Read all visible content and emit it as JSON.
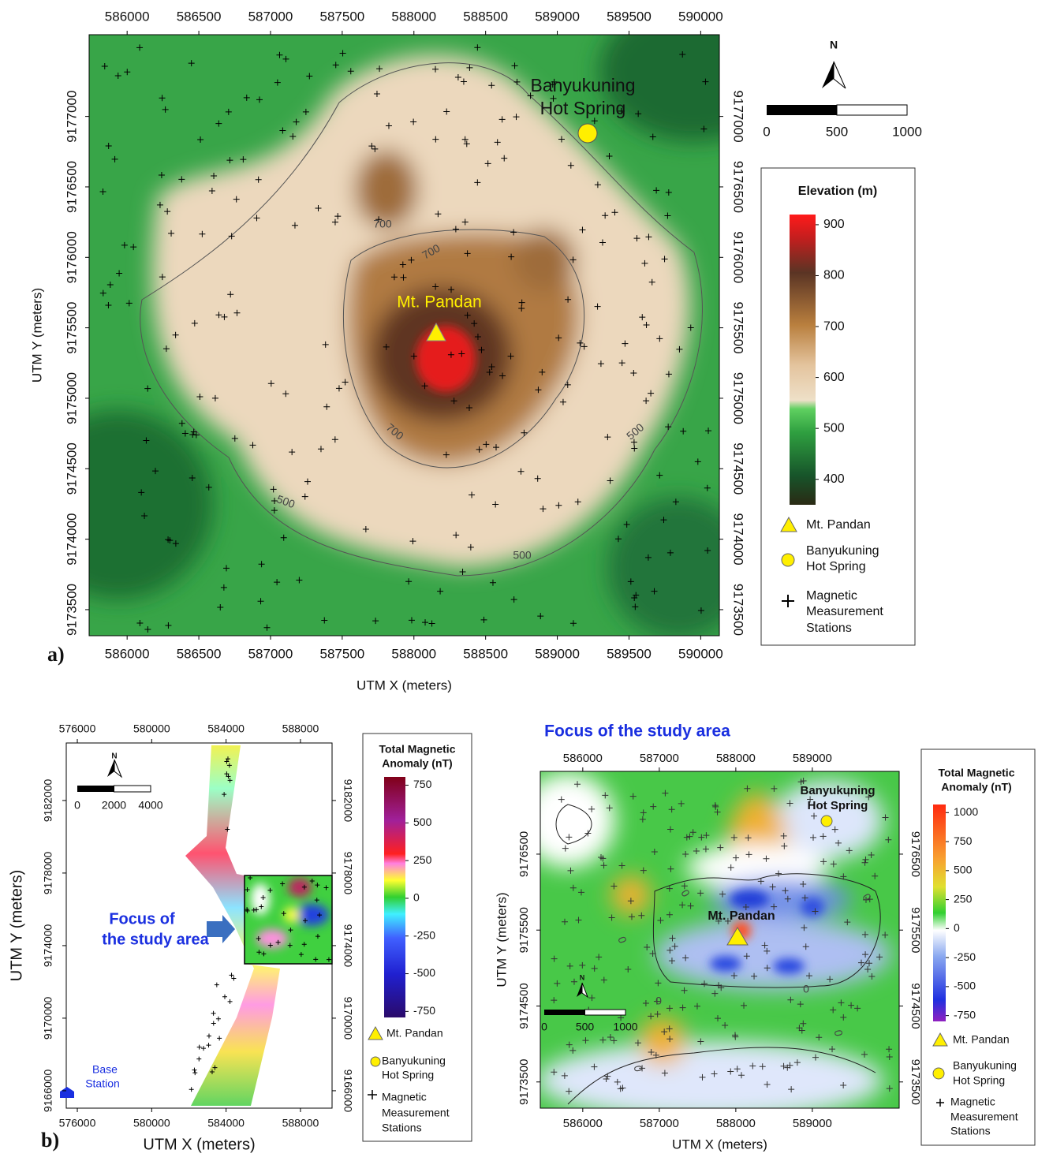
{
  "panel_a": {
    "label": "a)",
    "xlim": [
      585735,
      590130
    ],
    "ylim": [
      9173315,
      9177580
    ],
    "xticks": [
      586000,
      586500,
      587000,
      587500,
      588000,
      588500,
      589000,
      589500,
      590000
    ],
    "yticks": [
      9173500,
      9174000,
      9174500,
      9175000,
      9175500,
      9176000,
      9176500,
      9177000
    ],
    "x_label": "UTM X (meters)",
    "y_label": "UTM Y (meters)",
    "contour_labels": [
      700,
      700,
      700,
      500,
      500,
      500
    ],
    "peak_label": "Mt. Pandan",
    "spring_label": [
      "Banyukuning",
      "Hot Spring"
    ],
    "north": "N",
    "scale_ticks": [
      0,
      500,
      1000
    ],
    "legend": {
      "title": "Elevation (m)",
      "clim": [
        350,
        920
      ],
      "cticks": [
        400,
        500,
        600,
        700,
        800,
        900
      ],
      "peak": "Mt. Pandan",
      "spring": [
        "Banyukuning",
        "Hot Spring"
      ],
      "stations": [
        "Magnetic",
        "Measurement",
        "Stations"
      ]
    }
  },
  "panel_b": {
    "label": "b)",
    "regional": {
      "xlim": [
        575405,
        589700
      ],
      "ylim": [
        9165040,
        9185170
      ],
      "xticks": [
        576000,
        580000,
        584000,
        588000
      ],
      "yticks": [
        9166000,
        9170000,
        9174000,
        9178000,
        9182000
      ],
      "x_label": "UTM X (meters)",
      "y_label": "UTM Y (meters)",
      "north": "N",
      "scale_ticks": [
        0,
        2000,
        4000
      ],
      "focus_label": [
        "Focus of",
        "the study area"
      ],
      "base_label": [
        "Base",
        "Station"
      ],
      "legend": {
        "title": [
          "Total Magnetic",
          "Anomaly (nT)"
        ],
        "clim": [
          -790,
          805
        ],
        "cticks": [
          -750,
          -500,
          -250,
          0,
          250,
          500,
          750
        ],
        "peak": "Mt. Pandan",
        "spring": [
          "Banyukuning",
          "Hot Spring"
        ],
        "stations": [
          "Magnetic",
          "Measurement",
          "Stations"
        ]
      }
    },
    "focus": {
      "title": "Focus of the study area",
      "xlim": [
        585445,
        590135
      ],
      "ylim": [
        9173155,
        9177590
      ],
      "xticks": [
        586000,
        587000,
        588000,
        589000
      ],
      "yticks": [
        9173500,
        9174500,
        9175500,
        9176500
      ],
      "x_label": "UTM X (meters)",
      "y_label": "UTM Y (meters)",
      "contour_labels": [
        0,
        0,
        0,
        0,
        0,
        0,
        0
      ],
      "peak_label": "Mt. Pandan",
      "spring_label": [
        "Banyukuning",
        "Hot Spring"
      ],
      "north": "N",
      "scale_ticks": [
        0,
        500,
        1000
      ],
      "legend": {
        "title": [
          "Total Magnetic",
          "Anomaly (nT)"
        ],
        "clim": [
          -800,
          1070
        ],
        "cticks": [
          -750,
          -500,
          -250,
          0,
          250,
          500,
          750,
          1000
        ],
        "peak": "Mt. Pandan",
        "spring": [
          "Banyukuning",
          "Hot Spring"
        ],
        "stations": [
          "Magnetic",
          "Measurement",
          "Stations"
        ]
      }
    }
  }
}
